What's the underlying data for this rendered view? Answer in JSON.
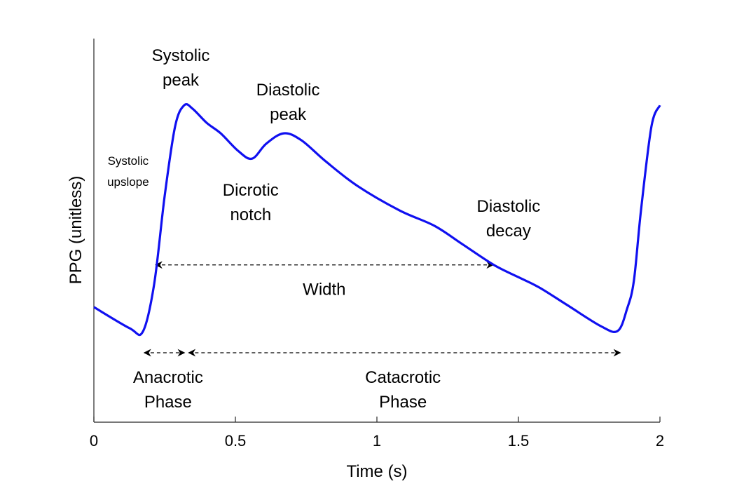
{
  "chart_data": {
    "type": "line",
    "title": "",
    "xlabel": "Time (s)",
    "ylabel": "PPG (unitless)",
    "xlim": [
      0,
      2
    ],
    "ylim": [
      0,
      1
    ],
    "xticks": [
      0,
      0.5,
      1,
      1.5,
      2
    ],
    "xtick_labels": [
      "0",
      "0.5",
      "1",
      "1.5",
      "2"
    ],
    "grid": false,
    "colors": {
      "line": "#1010f0",
      "axis": "#262626"
    },
    "series": [
      {
        "name": "PPG",
        "x": [
          0,
          0.126,
          0.173,
          0.213,
          0.25,
          0.287,
          0.319,
          0.349,
          0.399,
          0.448,
          0.51,
          0.559,
          0.609,
          0.671,
          0.733,
          0.819,
          0.931,
          1.08,
          1.203,
          1.302,
          1.413,
          1.5,
          1.574,
          1.673,
          1.792,
          1.851,
          1.884,
          1.908,
          1.933,
          1.97,
          2.0
        ],
        "y": [
          0.3,
          0.245,
          0.236,
          0.36,
          0.589,
          0.771,
          0.826,
          0.817,
          0.78,
          0.753,
          0.707,
          0.687,
          0.726,
          0.753,
          0.735,
          0.68,
          0.616,
          0.552,
          0.512,
          0.464,
          0.41,
          0.378,
          0.351,
          0.305,
          0.25,
          0.238,
          0.296,
          0.369,
          0.552,
          0.771,
          0.826
        ]
      }
    ],
    "arrows": [
      {
        "name": "width",
        "x": [
          0.218,
          1.411
        ],
        "y": 0.41
      },
      {
        "name": "anacrotic",
        "x": [
          0.178,
          0.32
        ],
        "y": 0.181
      },
      {
        "name": "catacrotic",
        "x": [
          0.335,
          1.86
        ],
        "y": 0.181
      }
    ],
    "annotations": [
      {
        "name": "systolic-peak",
        "lines": [
          "Systolic",
          "peak"
        ],
        "x": 0.307,
        "y": 0.925,
        "small": false
      },
      {
        "name": "diastolic-peak",
        "lines": [
          "Diastolic",
          "peak"
        ],
        "x": 0.686,
        "y": 0.835,
        "small": false
      },
      {
        "name": "systolic-upslope",
        "lines": [
          "Systolic",
          "upslope"
        ],
        "x": 0.121,
        "y": 0.654,
        "small": true
      },
      {
        "name": "dicrotic-notch",
        "lines": [
          "Dicrotic",
          "notch"
        ],
        "x": 0.554,
        "y": 0.574,
        "small": false
      },
      {
        "name": "diastolic-decay",
        "lines": [
          "Diastolic",
          "decay"
        ],
        "x": 1.465,
        "y": 0.532,
        "small": false
      },
      {
        "name": "width",
        "lines": [
          "Width"
        ],
        "x": 0.814,
        "y": 0.347,
        "small": false
      },
      {
        "name": "anacrotic-phase",
        "lines": [
          "Anacrotic",
          "Phase"
        ],
        "x": 0.262,
        "y": 0.086,
        "small": false
      },
      {
        "name": "catacrotic-phase",
        "lines": [
          "Catacrotic",
          "Phase"
        ],
        "x": 1.092,
        "y": 0.086,
        "small": false
      }
    ]
  }
}
